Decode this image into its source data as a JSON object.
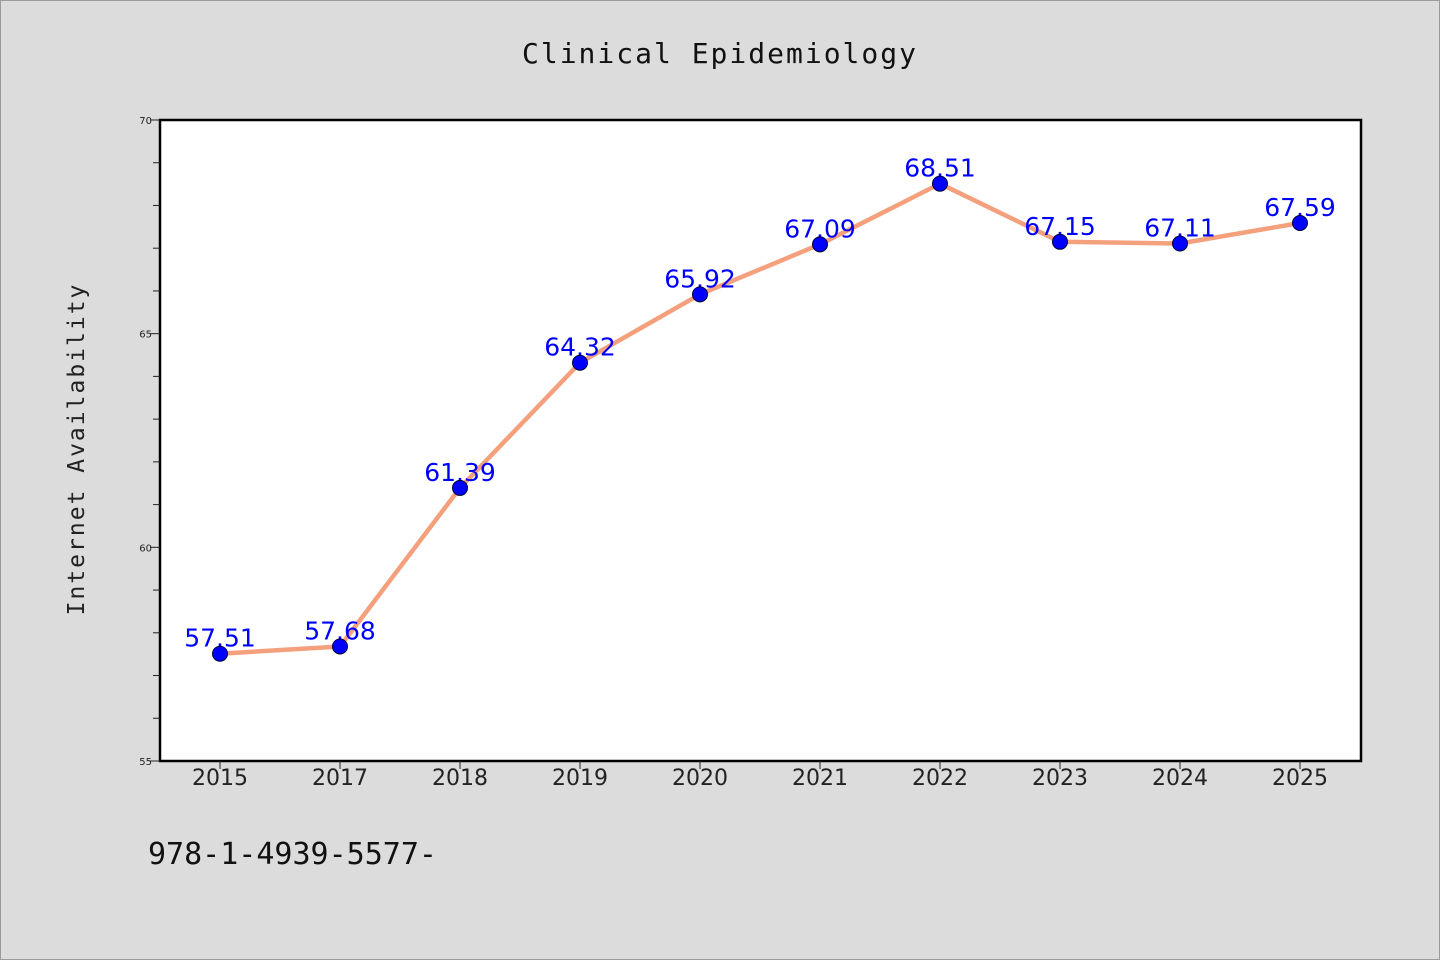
{
  "chart_data": {
    "type": "line",
    "title": "Clinical Epidemiology",
    "xlabel": "",
    "ylabel": "Internet Availability",
    "categories": [
      "2015",
      "2017",
      "2018",
      "2019",
      "2020",
      "2021",
      "2022",
      "2023",
      "2024",
      "2025"
    ],
    "series": [
      {
        "values": [
          57.51,
          57.68,
          61.39,
          64.32,
          65.92,
          67.09,
          68.51,
          67.15,
          67.11,
          67.59
        ]
      }
    ],
    "data_labels": [
      "57.51",
      "57.68",
      "61.39",
      "64.32",
      "65.92",
      "67.09",
      "68.51",
      "67.15",
      "67.11",
      "67.59"
    ],
    "ylim": [
      55,
      70
    ],
    "yticks": [
      55,
      60,
      65,
      70
    ],
    "ytick_labels": [
      "55",
      "60",
      "65",
      "70"
    ],
    "grid": false,
    "line_color": "#f4a07c",
    "marker_color": "#0000ff",
    "label_color": "#0000ff",
    "background": "#dcdcdc",
    "plot_background": "#ffffff"
  },
  "footnote": "978-1-4939-5577-"
}
